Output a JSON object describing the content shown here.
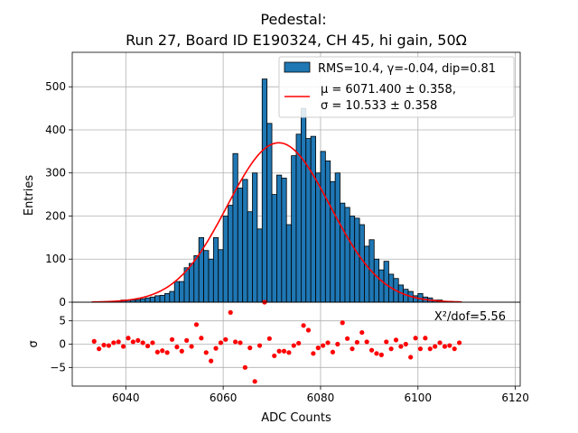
{
  "chart_data": {
    "type": "bar",
    "title": [
      "Pedestal:",
      "Run 27, Board ID E190324, CH 45, hi gain, 50Ω"
    ],
    "xlabel": "ADC Counts",
    "xlim": [
      6029,
      6121
    ],
    "x_ticks": [
      "6040",
      "6060",
      "6080",
      "6100",
      "6120"
    ],
    "histogram": {
      "ylabel": "Entries",
      "ylim": [
        0,
        580
      ],
      "y_ticks": [
        "0",
        "100",
        "200",
        "300",
        "400",
        "500"
      ],
      "bin_start": 6033,
      "bin_width": 1,
      "counts": [
        0,
        0,
        0,
        0,
        2,
        3,
        5,
        5,
        5,
        6,
        8,
        10,
        12,
        15,
        16,
        20,
        25,
        48,
        48,
        80,
        90,
        108,
        150,
        120,
        100,
        150,
        122,
        200,
        225,
        345,
        265,
        285,
        210,
        300,
        170,
        518,
        415,
        250,
        295,
        288,
        180,
        340,
        390,
        450,
        380,
        385,
        300,
        350,
        328,
        280,
        300,
        230,
        220,
        200,
        195,
        180,
        130,
        145,
        100,
        75,
        95,
        65,
        55,
        40,
        30,
        25,
        15,
        20,
        12,
        10,
        5,
        5,
        2,
        2,
        1
      ],
      "legend_label": "RMS=10.4, γ=-0.04, dip=0.81",
      "bar_color": "#1f77b4"
    },
    "fit": {
      "mu": 6071.4,
      "sigma": 10.533,
      "amplitude": 370,
      "x_range": [
        6033,
        6109
      ],
      "legend_label": [
        "μ = 6071.400 ± 0.358,",
        "σ = 10.533 ± 0.358"
      ],
      "color": "#ff0000"
    },
    "residuals": {
      "ylabel": "σ",
      "ylim": [
        -9,
        9
      ],
      "y_ticks": [
        "−5",
        "0",
        "5"
      ],
      "annotation": "X²/dof=5.56",
      "color": "#ff0000",
      "points": [
        [
          6033.5,
          0.6
        ],
        [
          6034.5,
          -1.0
        ],
        [
          6035.5,
          -0.2
        ],
        [
          6036.5,
          -0.3
        ],
        [
          6037.5,
          0.3
        ],
        [
          6038.5,
          0.5
        ],
        [
          6039.5,
          -0.5
        ],
        [
          6040.5,
          1.3
        ],
        [
          6041.5,
          0.5
        ],
        [
          6042.5,
          0.8
        ],
        [
          6043.5,
          0.3
        ],
        [
          6044.5,
          -0.4
        ],
        [
          6045.5,
          0.3
        ],
        [
          6046.5,
          -1.7
        ],
        [
          6047.5,
          -1.4
        ],
        [
          6048.5,
          -1.8
        ],
        [
          6049.5,
          1.0
        ],
        [
          6050.5,
          -0.6
        ],
        [
          6051.5,
          -1.5
        ],
        [
          6052.5,
          0.8
        ],
        [
          6053.5,
          -0.5
        ],
        [
          6054.5,
          4.2
        ],
        [
          6055.5,
          1.3
        ],
        [
          6056.5,
          -1.8
        ],
        [
          6057.5,
          -3.6
        ],
        [
          6058.5,
          -0.9
        ],
        [
          6059.5,
          0.3
        ],
        [
          6060.5,
          1.0
        ],
        [
          6061.5,
          6.8
        ],
        [
          6062.5,
          0.5
        ],
        [
          6063.5,
          0.3
        ],
        [
          6064.5,
          -5.0
        ],
        [
          6065.5,
          -0.8
        ],
        [
          6066.5,
          -8.0
        ],
        [
          6067.5,
          -0.3
        ],
        [
          6068.5,
          9.0
        ],
        [
          6069.5,
          1.2
        ],
        [
          6070.5,
          -2.5
        ],
        [
          6071.5,
          -1.5
        ],
        [
          6072.5,
          -1.5
        ],
        [
          6073.5,
          -1.8
        ],
        [
          6074.5,
          -0.3
        ],
        [
          6075.5,
          0.2
        ],
        [
          6076.5,
          4.0
        ],
        [
          6077.5,
          3.0
        ],
        [
          6078.5,
          -2.0
        ],
        [
          6079.5,
          -0.8
        ],
        [
          6080.5,
          -0.3
        ],
        [
          6081.5,
          0.3
        ],
        [
          6082.5,
          -1.7
        ],
        [
          6083.5,
          0.0
        ],
        [
          6084.5,
          4.6
        ],
        [
          6085.5,
          1.2
        ],
        [
          6086.5,
          -1.0
        ],
        [
          6087.5,
          0.4
        ],
        [
          6088.5,
          2.5
        ],
        [
          6089.5,
          0.5
        ],
        [
          6090.5,
          -1.3
        ],
        [
          6091.5,
          -2.0
        ],
        [
          6092.5,
          -2.3
        ],
        [
          6093.5,
          0.5
        ],
        [
          6094.5,
          -1.0
        ],
        [
          6095.5,
          0.9
        ],
        [
          6096.5,
          -0.5
        ],
        [
          6097.5,
          0.0
        ],
        [
          6098.5,
          -2.8
        ],
        [
          6099.5,
          1.3
        ],
        [
          6100.5,
          -1.0
        ],
        [
          6101.5,
          1.3
        ],
        [
          6102.5,
          -1.0
        ],
        [
          6103.5,
          -0.5
        ],
        [
          6104.5,
          0.3
        ],
        [
          6105.5,
          -0.5
        ],
        [
          6106.5,
          -0.3
        ],
        [
          6107.5,
          -1.0
        ],
        [
          6108.5,
          0.3
        ]
      ]
    }
  }
}
